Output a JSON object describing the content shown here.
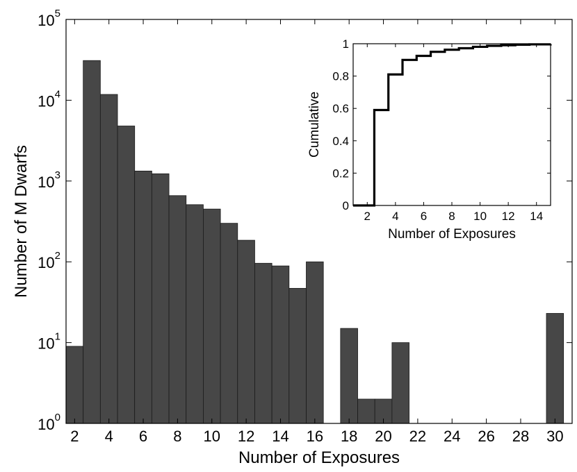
{
  "chart_data": [
    {
      "type": "bar",
      "xlabel": "Number of Exposures",
      "ylabel": "Number of M Dwarfs",
      "yscale": "log",
      "ylim": [
        1,
        100000
      ],
      "xlim": [
        1.5,
        31
      ],
      "bar_color": "#474747",
      "x_ticks": [
        2,
        4,
        6,
        8,
        10,
        12,
        14,
        16,
        18,
        20,
        22,
        24,
        26,
        28,
        30
      ],
      "y_ticks": [
        {
          "value": 1,
          "base": "10",
          "exp": "0"
        },
        {
          "value": 10,
          "base": "10",
          "exp": "1"
        },
        {
          "value": 100,
          "base": "10",
          "exp": "2"
        },
        {
          "value": 1000,
          "base": "10",
          "exp": "3"
        },
        {
          "value": 10000,
          "base": "10",
          "exp": "4"
        },
        {
          "value": 100000,
          "base": "10",
          "exp": "5"
        }
      ],
      "x": [
        2,
        3,
        4,
        5,
        6,
        7,
        8,
        9,
        10,
        11,
        12,
        13,
        14,
        15,
        16,
        18,
        19,
        20,
        21,
        30
      ],
      "values": [
        9,
        31000,
        11800,
        4800,
        1330,
        1230,
        660,
        510,
        450,
        300,
        185,
        96,
        89,
        47,
        100,
        15,
        2,
        2,
        10,
        23
      ]
    },
    {
      "type": "line",
      "step": true,
      "xlabel": "Number of Exposures",
      "ylabel": "Cumulative",
      "xlim": [
        1,
        15
      ],
      "ylim": [
        0,
        1
      ],
      "line_color": "#000000",
      "x_ticks": [
        2,
        4,
        6,
        8,
        10,
        12,
        14
      ],
      "y_ticks": [
        "0",
        "0.2",
        "0.4",
        "0.6",
        "0.8",
        "1"
      ],
      "x": [
        1,
        2.5,
        3.5,
        4.5,
        5.5,
        6.5,
        7.5,
        8.5,
        9.5,
        10.5,
        11.5,
        12.5,
        13.5,
        15
      ],
      "y": [
        0,
        0.59,
        0.81,
        0.9,
        0.925,
        0.95,
        0.963,
        0.972,
        0.981,
        0.987,
        0.991,
        0.994,
        0.996,
        0.997
      ]
    }
  ]
}
